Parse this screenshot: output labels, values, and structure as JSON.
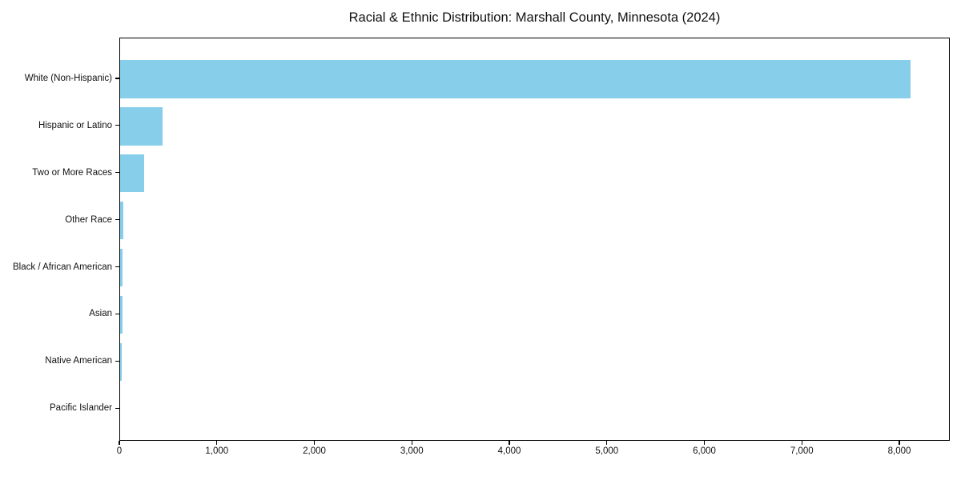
{
  "chart_data": {
    "type": "bar",
    "orientation": "horizontal",
    "title": "Racial & Ethnic Distribution: Marshall County, Minnesota (2024)",
    "categories": [
      "White (Non-Hispanic)",
      "Hispanic or Latino",
      "Two or More Races",
      "Other Race",
      "Black / African American",
      "Asian",
      "Native American",
      "Pacific Islander"
    ],
    "values": [
      8110,
      435,
      245,
      35,
      28,
      26,
      19,
      0
    ],
    "xlabel": "",
    "ylabel": "",
    "xlim": [
      0,
      8517
    ],
    "x_ticks": [
      0,
      1000,
      2000,
      3000,
      4000,
      5000,
      6000,
      7000,
      8000
    ],
    "x_tick_labels": [
      "0",
      "1,000",
      "2,000",
      "3,000",
      "4,000",
      "5,000",
      "6,000",
      "7,000",
      "8,000"
    ],
    "bar_color": "#87CEEB",
    "text_color": "#111111",
    "background_color": "#ffffff",
    "grid": false,
    "legend": null
  }
}
